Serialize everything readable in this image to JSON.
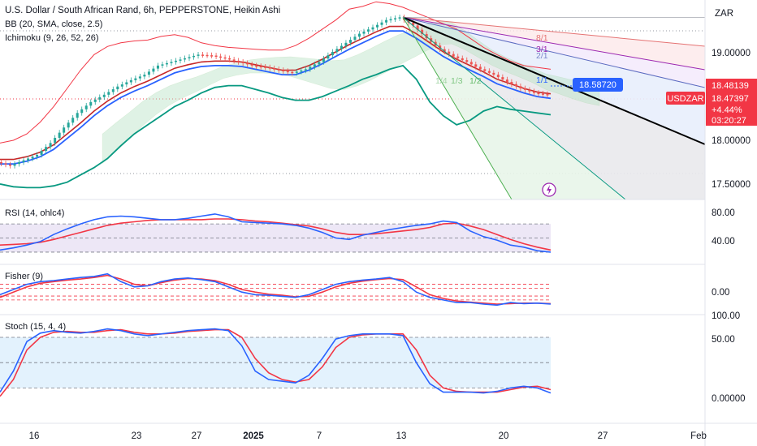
{
  "header": {
    "title": "U.S. Dollar / South African Rand, 6h, PEPPERSTONE, Heikin Ashi",
    "bb_label": "BB (20, SMA, close, 2.5)",
    "ichimoku_label": "Ichimoku (9, 26, 52, 26)",
    "currency": "ZAR"
  },
  "colors": {
    "up": "#26a69a",
    "down": "#ef5350",
    "bb_mid": "#2962ff",
    "bb_band": "#f23645",
    "kijun": "#089981",
    "cloud": "#b9e3c6",
    "cloud_red": "#f6c9c9",
    "osc_red": "#f23645",
    "osc_blue": "#2962ff",
    "rsi_fill": "#ede7f6",
    "stoch_fill": "#e3f2fd"
  },
  "badges": {
    "projection": "18.58720",
    "price_high": "18.48139",
    "symbol": "USDZAR",
    "price": "18.47397",
    "change": "+4.44%",
    "countdown": "03:20:27"
  },
  "gann_labels": [
    "8/1",
    "3/1",
    "2/1",
    "1/1",
    "1/2",
    "1/3",
    "1/4"
  ],
  "chart_data": [
    {
      "type": "candlestick",
      "title": "U.S. Dollar / South African Rand, 6h, PEPPERSTONE, Heikin Ashi",
      "y_ticks": [
        "19.00000",
        "18.00000",
        "17.50000"
      ],
      "ylim": [
        17.33,
        19.52
      ],
      "x_ticks": [
        "16",
        "23",
        "27",
        "2025",
        "7",
        "13",
        "20",
        "27",
        "Feb"
      ],
      "trend": [
        17.74,
        17.7,
        17.76,
        17.82,
        17.95,
        18.12,
        18.28,
        18.4,
        18.48,
        18.57,
        18.64,
        18.7,
        18.8,
        18.84,
        18.88,
        18.92,
        18.91,
        18.88,
        18.84,
        18.8,
        18.78,
        18.75,
        18.72,
        18.76,
        18.84,
        18.95,
        19.05,
        19.15,
        19.22,
        19.3,
        19.33,
        19.24,
        19.1,
        18.98,
        18.9,
        18.84,
        18.76,
        18.7,
        18.62,
        18.55,
        18.5,
        18.48
      ],
      "bb_upper": [
        17.95,
        17.98,
        18.05,
        18.18,
        18.35,
        18.55,
        18.75,
        18.92,
        19.01,
        19.05,
        19.07,
        19.08,
        19.12,
        19.14,
        19.11,
        19.05,
        19.02,
        19.0,
        18.99,
        18.98,
        18.97,
        18.97,
        19.02,
        19.1,
        19.2,
        19.3,
        19.42,
        19.45,
        19.5,
        19.48,
        19.44,
        19.38,
        19.32,
        19.26,
        19.2,
        19.1,
        19.0,
        18.92,
        18.85,
        18.8,
        18.78,
        18.76
      ],
      "bb_mid": [
        17.72,
        17.72,
        17.75,
        17.8,
        17.88,
        18.0,
        18.12,
        18.25,
        18.36,
        18.45,
        18.52,
        18.58,
        18.65,
        18.72,
        18.76,
        18.79,
        18.8,
        18.8,
        18.79,
        18.76,
        18.73,
        18.7,
        18.7,
        18.75,
        18.82,
        18.9,
        18.98,
        19.05,
        19.12,
        19.18,
        19.18,
        19.1,
        19.0,
        18.9,
        18.82,
        18.75,
        18.68,
        18.6,
        18.55,
        18.5,
        18.46,
        18.44
      ],
      "bb_lower": [
        17.5,
        17.47,
        17.46,
        17.46,
        17.48,
        17.52,
        17.6,
        17.68,
        17.78,
        17.92,
        18.05,
        18.15,
        18.25,
        18.35,
        18.42,
        18.5,
        18.56,
        18.58,
        18.58,
        18.54,
        18.5,
        18.45,
        18.42,
        18.42,
        18.46,
        18.52,
        18.58,
        18.65,
        18.7,
        18.76,
        18.8,
        18.65,
        18.4,
        18.25,
        18.15,
        18.2,
        18.3,
        18.35,
        18.32,
        18.3,
        18.28,
        18.26
      ]
    },
    {
      "type": "line",
      "title": "RSI (14, ohlc4)",
      "y_ticks": [
        "80.00",
        "40.00"
      ],
      "ylim": [
        15,
        100
      ],
      "bands": [
        70,
        50,
        30
      ],
      "series": [
        {
          "values": [
            33,
            36,
            40,
            45,
            55,
            63,
            70,
            76,
            80,
            81,
            80,
            78,
            76,
            76,
            78,
            81,
            84,
            80,
            73,
            72,
            71,
            70,
            68,
            64,
            58,
            50,
            48,
            54,
            58,
            62,
            65,
            68,
            70,
            74,
            72,
            60,
            52,
            47,
            40,
            37,
            32,
            30
          ]
        },
        {
          "values": [
            40,
            41,
            42,
            44,
            48,
            53,
            58,
            63,
            68,
            71,
            73,
            75,
            76,
            76,
            76,
            76,
            77,
            77,
            76,
            74,
            73,
            71,
            69,
            67,
            63,
            58,
            55,
            55,
            56,
            58,
            60,
            62,
            65,
            70,
            71,
            67,
            62,
            55,
            48,
            42,
            37,
            33
          ]
        }
      ]
    },
    {
      "type": "line",
      "title": "Fisher (9)",
      "y_ticks": [
        "0.00"
      ],
      "ylim": [
        -4,
        5
      ],
      "bands": [
        1.5,
        0.75,
        -0.75,
        -1.5
      ],
      "series": [
        {
          "values": [
            -0.5,
            0.5,
            1.5,
            2.0,
            2.2,
            2.5,
            2.8,
            3.0,
            3.5,
            2.0,
            1.0,
            1.2,
            2.0,
            2.5,
            2.7,
            2.4,
            2.0,
            1.0,
            0.0,
            -0.5,
            -0.6,
            -0.8,
            -1.0,
            -0.5,
            0.5,
            1.5,
            2.0,
            2.3,
            2.5,
            2.8,
            2.0,
            0.0,
            -1.0,
            -1.5,
            -2.0,
            -2.0,
            -2.3,
            -2.5,
            -2.0,
            -2.2,
            -2.1,
            -2.3
          ]
        },
        {
          "values": [
            -1.0,
            0.0,
            1.0,
            1.7,
            2.0,
            2.3,
            2.5,
            2.8,
            3.2,
            2.5,
            1.5,
            1.2,
            1.8,
            2.3,
            2.6,
            2.5,
            2.2,
            1.5,
            0.5,
            0.0,
            -0.4,
            -0.6,
            -0.9,
            -0.8,
            0.0,
            1.0,
            1.7,
            2.1,
            2.4,
            2.6,
            2.4,
            1.0,
            -0.5,
            -1.2,
            -1.7,
            -1.9,
            -2.1,
            -2.3,
            -2.2,
            -2.1,
            -2.1,
            -2.2
          ]
        }
      ]
    },
    {
      "type": "line",
      "title": "Stoch (15, 4, 4)",
      "y_ticks": [
        "100.00",
        "50.00",
        "0.00000"
      ],
      "ylim": [
        -20,
        105
      ],
      "bands": [
        80,
        50,
        20
      ],
      "series": [
        {
          "values": [
            15,
            40,
            75,
            85,
            88,
            86,
            85,
            87,
            90,
            88,
            84,
            82,
            84,
            86,
            88,
            89,
            90,
            88,
            70,
            40,
            30,
            28,
            26,
            35,
            55,
            78,
            82,
            84,
            84,
            84,
            82,
            50,
            25,
            15,
            15,
            15,
            14,
            16,
            20,
            22,
            20,
            14
          ]
        },
        {
          "values": [
            10,
            30,
            65,
            80,
            86,
            87,
            86,
            86,
            88,
            89,
            86,
            84,
            84,
            85,
            87,
            88,
            89,
            89,
            80,
            55,
            38,
            30,
            27,
            30,
            45,
            68,
            80,
            83,
            84,
            84,
            84,
            65,
            35,
            20,
            16,
            15,
            15,
            15,
            18,
            21,
            22,
            18
          ]
        }
      ]
    }
  ]
}
